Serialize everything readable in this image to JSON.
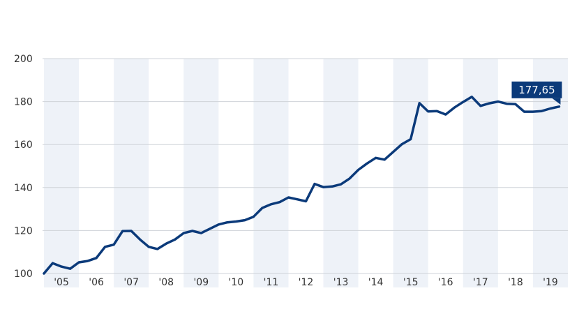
{
  "chart_data": {
    "type": "line",
    "title": "",
    "xlabel": "",
    "ylabel": "",
    "ylim": [
      100,
      200
    ],
    "yticks": [
      100,
      120,
      140,
      160,
      180,
      200
    ],
    "grid": true,
    "alternating_year_bands": true,
    "x_tick_labels": [
      "'05",
      "'06",
      "'07",
      "'08",
      "'09",
      "'10",
      "'11",
      "'12",
      "'13",
      "'14",
      "'15",
      "'16",
      "'17",
      "'18",
      "'19"
    ],
    "x_range": [
      2005.0,
      2020.0
    ],
    "series": [
      {
        "color": "#0b3a7a",
        "x": [
          2005.0,
          2005.25,
          2005.5,
          2005.75,
          2006.0,
          2006.25,
          2006.5,
          2006.75,
          2007.0,
          2007.25,
          2007.5,
          2007.75,
          2008.0,
          2008.25,
          2008.5,
          2008.75,
          2009.0,
          2009.25,
          2009.5,
          2009.75,
          2010.0,
          2010.25,
          2010.5,
          2010.75,
          2011.0,
          2011.25,
          2011.5,
          2011.75,
          2012.0,
          2012.25,
          2012.5,
          2012.75,
          2013.0,
          2013.25,
          2013.5,
          2013.75,
          2014.0,
          2014.25,
          2014.5,
          2014.75,
          2015.0,
          2015.25,
          2015.5,
          2015.75,
          2016.0,
          2016.25,
          2016.5,
          2016.75,
          2017.0,
          2017.25,
          2017.5,
          2017.75,
          2018.0,
          2018.25,
          2018.5,
          2018.75,
          2019.0,
          2019.25,
          2019.5,
          2019.75
        ],
        "y": [
          100,
          104.8,
          103.2,
          102.2,
          105.2,
          105.8,
          107.2,
          112.4,
          113.4,
          119.7,
          119.8,
          115.8,
          112.4,
          111.4,
          113.9,
          115.8,
          118.8,
          119.8,
          118.8,
          120.8,
          122.8,
          123.8,
          124.2,
          124.8,
          126.4,
          130.5,
          132.2,
          133.2,
          135.4,
          134.5,
          133.6,
          141.7,
          140.2,
          140.5,
          141.5,
          144.2,
          148.2,
          151.2,
          153.8,
          153.0,
          156.6,
          160.2,
          162.5,
          179.3,
          175.4,
          175.6,
          174.0,
          177.2,
          179.8,
          182.2,
          178.0,
          179.2,
          180.0,
          179.0,
          178.8,
          175.3,
          175.3,
          175.6,
          176.8,
          177.65
        ]
      }
    ],
    "callout": {
      "label": "177,65",
      "bg": "#0b3a7a"
    },
    "colors": {
      "band": "#eef2f8",
      "grid": "#cfd3d8",
      "axis": "#333333",
      "line": "#0b3a7a"
    }
  }
}
